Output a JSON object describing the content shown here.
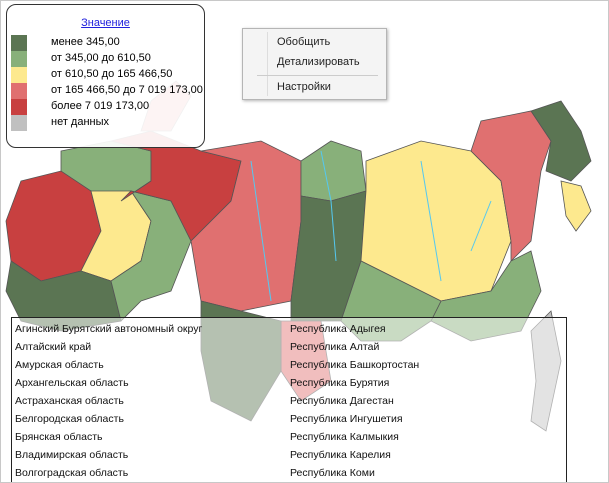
{
  "legend": {
    "title": "Значение",
    "items": [
      {
        "label": "менее 345,00",
        "color": "#5b7553"
      },
      {
        "label": "от 345,00 до 610,50",
        "color": "#88b07a"
      },
      {
        "label": "от 610,50 до 165 466,50",
        "color": "#fde98e"
      },
      {
        "label": "от 165 466,50 до 7 019 173,00",
        "color": "#e07070"
      },
      {
        "label": "более 7 019 173,00",
        "color": "#c84040"
      },
      {
        "label": "нет данных",
        "color": "#c0c0c0"
      }
    ]
  },
  "context_menu": {
    "items": [
      "Обобщить",
      "Детализировать",
      "Настройки"
    ]
  },
  "region_list": {
    "column1": [
      "Агинский Бурятский автономный округ",
      "Алтайский край",
      "Амурская область",
      "Архангельская область",
      "Астраханская область",
      "Белгородская область",
      "Брянская область",
      "Владимирская область",
      "Волгоградская область"
    ],
    "column2": [
      "Республика Адыгея",
      "Республика Алтай",
      "Республика Башкортостан",
      "Республика Бурятия",
      "Республика Дагестан",
      "Республика Ингушетия",
      "Республика Калмыкия",
      "Республика Карелия",
      "Республика Коми"
    ]
  },
  "colors": {
    "water": "#55c8f0",
    "border": "#555555"
  }
}
